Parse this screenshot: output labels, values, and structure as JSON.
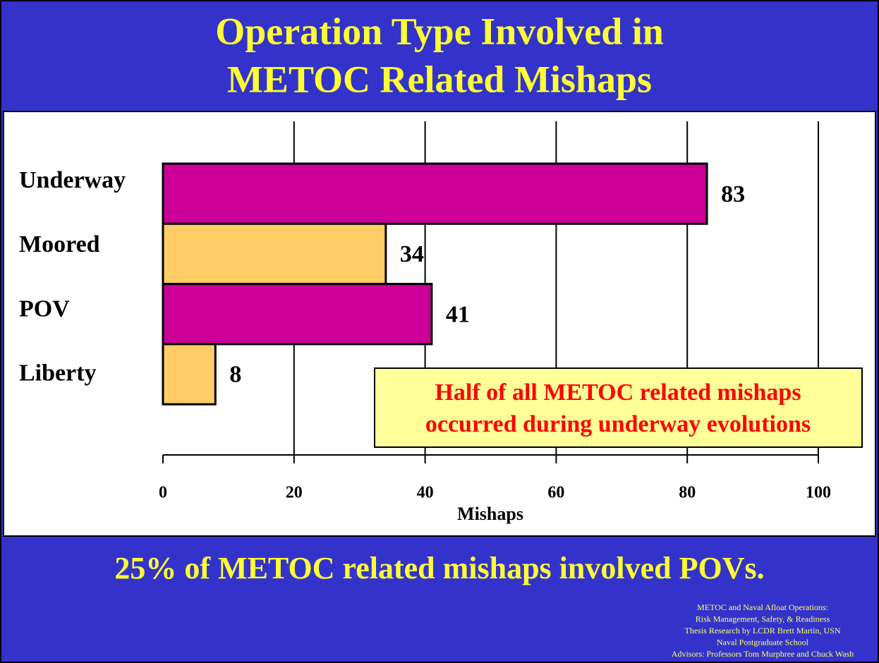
{
  "chart_data": {
    "type": "bar",
    "orientation": "horizontal",
    "title": [
      "Operation Type Involved in",
      "METOC Related Mishaps"
    ],
    "categories": [
      "Underway",
      "Moored",
      "POV",
      "Liberty"
    ],
    "values": [
      83,
      34,
      41,
      8
    ],
    "colors": [
      "#cc0099",
      "#ffcc66",
      "#cc0099",
      "#ffcc66"
    ],
    "xlim": [
      0,
      100
    ],
    "xticks": [
      0,
      20,
      40,
      60,
      80,
      100
    ],
    "grid": true,
    "xlabel": "Mishaps",
    "annotation": [
      "Half of all METOC related mishaps",
      "occurred during underway evolutions"
    ],
    "subtitle": "25% of METOC related mishaps involved POVs.",
    "credits": [
      "METOC and Naval Afloat Operations:",
      "Risk Management, Safety, & Readiness",
      "Thesis Research by LCDR Brett Martin, USN",
      "Naval Postgraduate School",
      "Advisors: Professors Tom Murphree and Chuck Wash"
    ]
  }
}
